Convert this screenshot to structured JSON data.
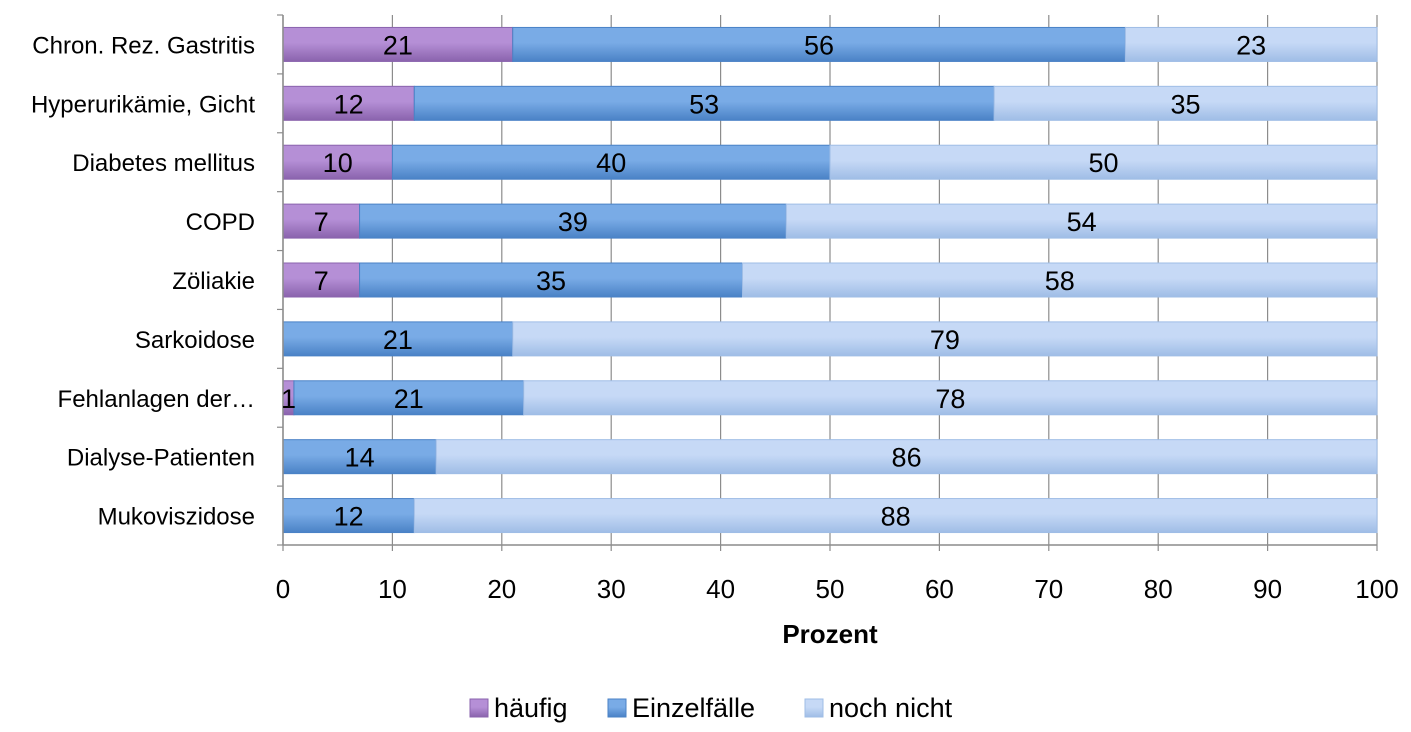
{
  "chart_data": {
    "type": "bar",
    "orientation": "horizontal",
    "stacked": true,
    "categories": [
      "Chron. Rez. Gastritis",
      "Hyperurikämie, Gicht",
      "Diabetes mellitus",
      "COPD",
      "Zöliakie",
      "Sarkoidose",
      "Fehlanlagen der…",
      "Dialyse-Patienten",
      "Mukoviszidose"
    ],
    "series": [
      {
        "name": "häufig",
        "values": [
          21,
          12,
          10,
          7,
          7,
          0,
          1,
          0,
          0
        ],
        "color": "#b58fd6",
        "color_dark": "#8a63ad",
        "labels": [
          "21",
          "12",
          "10",
          "7",
          "7",
          "",
          "1",
          "",
          ""
        ]
      },
      {
        "name": "Einzelfälle",
        "values": [
          56,
          53,
          40,
          39,
          35,
          21,
          21,
          14,
          12
        ],
        "color": "#79abe6",
        "color_dark": "#4a82c6",
        "labels": [
          "56",
          "53",
          "40",
          "39",
          "35",
          "21",
          "21",
          "14",
          "12"
        ]
      },
      {
        "name": "noch nicht",
        "values": [
          23,
          35,
          50,
          54,
          58,
          79,
          78,
          86,
          88
        ],
        "color": "#c6d9f6",
        "color_dark": "#9fbde6",
        "labels": [
          "23",
          "35",
          "50",
          "54",
          "58",
          "79",
          "78",
          "86",
          "88"
        ]
      }
    ],
    "xlabel": "Prozent",
    "ylabel": "",
    "xlim": [
      0,
      100
    ],
    "xticks": [
      "0",
      "10",
      "20",
      "30",
      "40",
      "50",
      "60",
      "70",
      "80",
      "90",
      "100"
    ],
    "grid": "vertical",
    "legend_position": "bottom"
  }
}
